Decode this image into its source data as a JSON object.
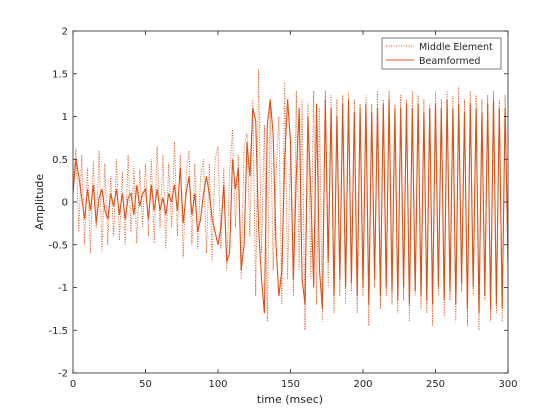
{
  "chart_data": {
    "type": "line",
    "title": "",
    "xlabel": "time (msec)",
    "ylabel": "Amplitude",
    "xlim": [
      0,
      300
    ],
    "ylim": [
      -2,
      2
    ],
    "grid": false,
    "legend_position": "top-right",
    "x_ticks": [
      0,
      50,
      100,
      150,
      200,
      250,
      300
    ],
    "x_tick_labels": [
      "0",
      "50",
      "100",
      "150",
      "200",
      "250",
      "300"
    ],
    "y_ticks": [
      -2,
      -1.5,
      -1,
      -0.5,
      0,
      0.5,
      1,
      1.5,
      2
    ],
    "y_tick_labels": [
      "-2",
      "-1.5",
      "-1",
      "-0.5",
      "0",
      "0.5",
      "1",
      "1.5",
      "2"
    ],
    "series": [
      {
        "name": "Middle Element",
        "style": "dotted",
        "color": "#D95319",
        "x": [
          0,
          2,
          4,
          6,
          8,
          10,
          12,
          14,
          16,
          18,
          20,
          22,
          24,
          26,
          28,
          30,
          32,
          34,
          36,
          38,
          40,
          42,
          44,
          46,
          48,
          50,
          52,
          54,
          56,
          58,
          60,
          62,
          64,
          66,
          68,
          70,
          72,
          74,
          76,
          78,
          80,
          82,
          84,
          86,
          88,
          90,
          92,
          94,
          96,
          98,
          100,
          102,
          104,
          106,
          108,
          110,
          112,
          114,
          116,
          118,
          120,
          122,
          124,
          126,
          128,
          130,
          132,
          134,
          136,
          138,
          140,
          142,
          144,
          146,
          148,
          150,
          152,
          154,
          156,
          158,
          160,
          162,
          164,
          166,
          168,
          170,
          172,
          174,
          176,
          178,
          180,
          182,
          184,
          186,
          188,
          190,
          192,
          194,
          196,
          198,
          200,
          202,
          204,
          206,
          208,
          210,
          212,
          214,
          216,
          218,
          220,
          222,
          224,
          226,
          228,
          230,
          232,
          234,
          236,
          238,
          240,
          242,
          244,
          246,
          248,
          250,
          252,
          254,
          256,
          258,
          260,
          262,
          264,
          266,
          268,
          270,
          272,
          274,
          276,
          278,
          280,
          282,
          284,
          286,
          288,
          290,
          292,
          294,
          296,
          298,
          300
        ],
        "y": [
          0.2,
          0.62,
          -0.35,
          0.55,
          -0.5,
          0.4,
          -0.6,
          0.48,
          -0.3,
          0.6,
          -0.58,
          0.45,
          -0.5,
          0.3,
          -0.4,
          0.5,
          -0.45,
          0.35,
          -0.5,
          0.55,
          -0.35,
          0.42,
          -0.48,
          0.38,
          -0.3,
          0.45,
          -0.4,
          0.5,
          -0.48,
          0.65,
          -0.3,
          0.55,
          -0.55,
          0.45,
          -0.3,
          0.7,
          -0.4,
          0.55,
          -0.65,
          0.3,
          0.6,
          -0.5,
          0.45,
          -0.55,
          0.3,
          0.5,
          -0.6,
          0.45,
          -0.7,
          0.5,
          0.65,
          -0.55,
          0.4,
          -0.8,
          0.35,
          0.85,
          -0.3,
          0.55,
          -0.9,
          0.65,
          0.8,
          -0.4,
          1.2,
          -1.1,
          1.55,
          -0.6,
          0.9,
          -1.4,
          1.2,
          -0.8,
          0.3,
          1.0,
          -1.2,
          1.4,
          -0.9,
          0.6,
          -1.1,
          1.3,
          -0.8,
          1.2,
          -1.5,
          1.15,
          -0.9,
          1.3,
          -1.2,
          1.1,
          -1.4,
          1.3,
          -1.0,
          1.25,
          -1.3,
          1.2,
          -1.1,
          1.25,
          -1.2,
          1.3,
          -1.05,
          1.2,
          -1.3,
          1.15,
          -1.1,
          1.25,
          -1.45,
          1.15,
          -1.0,
          1.3,
          -1.25,
          1.2,
          -1.1,
          1.3,
          -1.2,
          1.15,
          -1.3,
          1.25,
          -1.15,
          1.2,
          -1.4,
          1.3,
          -1.1,
          1.25,
          -1.25,
          1.2,
          -1.3,
          1.15,
          -1.45,
          1.3,
          -1.1,
          1.2,
          -1.35,
          1.3,
          -1.15,
          1.25,
          -1.4,
          1.35,
          -1.05,
          1.2,
          -1.45,
          1.3,
          -1.1,
          1.25,
          -1.5,
          1.2,
          -1.15,
          1.25,
          -1.4,
          1.3,
          -1.3,
          1.2,
          -1.4,
          1.25,
          -0.9
        ]
      },
      {
        "name": "Beamformed",
        "style": "solid",
        "color": "#D95319",
        "x": [
          0,
          2,
          4,
          6,
          8,
          10,
          12,
          14,
          16,
          18,
          20,
          22,
          24,
          26,
          28,
          30,
          32,
          34,
          36,
          38,
          40,
          42,
          44,
          46,
          48,
          50,
          52,
          54,
          56,
          58,
          60,
          62,
          64,
          66,
          68,
          70,
          72,
          74,
          76,
          78,
          80,
          82,
          84,
          86,
          88,
          90,
          92,
          94,
          96,
          98,
          100,
          102,
          104,
          106,
          108,
          110,
          112,
          114,
          116,
          118,
          120,
          122,
          124,
          126,
          128,
          130,
          132,
          134,
          136,
          138,
          140,
          142,
          144,
          146,
          148,
          150,
          152,
          154,
          156,
          158,
          160,
          162,
          164,
          166,
          168,
          170,
          172,
          174,
          176,
          178,
          180,
          182,
          184,
          186,
          188,
          190,
          192,
          194,
          196,
          198,
          200,
          202,
          204,
          206,
          208,
          210,
          212,
          214,
          216,
          218,
          220,
          222,
          224,
          226,
          228,
          230,
          232,
          234,
          236,
          238,
          240,
          242,
          244,
          246,
          248,
          250,
          252,
          254,
          256,
          258,
          260,
          262,
          264,
          266,
          268,
          270,
          272,
          274,
          276,
          278,
          280,
          282,
          284,
          286,
          288,
          290,
          292,
          294,
          296,
          298,
          300
        ],
        "y": [
          0.1,
          0.5,
          0.3,
          0.05,
          -0.2,
          0.15,
          -0.1,
          0.2,
          -0.25,
          0.05,
          0.15,
          -0.1,
          -0.2,
          0.1,
          -0.05,
          0.15,
          -0.15,
          0.1,
          -0.2,
          0.05,
          0.1,
          -0.15,
          0.2,
          -0.05,
          0.1,
          0.15,
          -0.2,
          0.2,
          -0.1,
          0.15,
          -0.1,
          0.05,
          -0.15,
          0.1,
          0.0,
          0.2,
          -0.1,
          0.4,
          -0.25,
          0.1,
          0.3,
          -0.15,
          0.1,
          -0.35,
          -0.2,
          0.1,
          0.3,
          0.1,
          -0.2,
          -0.35,
          -0.5,
          -0.3,
          0.2,
          -0.7,
          -0.6,
          0.5,
          0.15,
          0.4,
          -0.8,
          -0.5,
          0.7,
          0.3,
          1.1,
          0.95,
          -0.3,
          -0.9,
          -1.3,
          0.9,
          1.2,
          0.8,
          -0.5,
          -1.1,
          -0.8,
          0.5,
          1.2,
          0.7,
          -0.9,
          0.3,
          1.1,
          -0.9,
          -1.2,
          1.0,
          0.1,
          -1.0,
          1.15,
          -0.8,
          -1.25,
          1.2,
          -0.7,
          1.1,
          -1.1,
          1.0,
          -0.9,
          1.15,
          -1.0,
          1.2,
          -0.95,
          1.05,
          -1.1,
          1.1,
          -1.0,
          1.15,
          -1.2,
          1.05,
          -0.9,
          1.1,
          -1.1,
          1.15,
          -1.0,
          1.2,
          -1.05,
          1.1,
          -1.15,
          1.1,
          -1.0,
          1.15,
          -1.2,
          1.1,
          -1.05,
          1.15,
          -1.1,
          1.05,
          -1.15,
          1.1,
          -1.2,
          1.15,
          -1.0,
          1.1,
          -1.15,
          1.2,
          -1.05,
          1.1,
          -1.2,
          1.15,
          -0.95,
          1.05,
          -1.25,
          1.15,
          -1.0,
          1.1,
          -1.3,
          1.05,
          -1.1,
          1.15,
          -1.25,
          1.2,
          -1.2,
          1.1,
          -1.25,
          1.1,
          -0.7
        ]
      }
    ]
  }
}
